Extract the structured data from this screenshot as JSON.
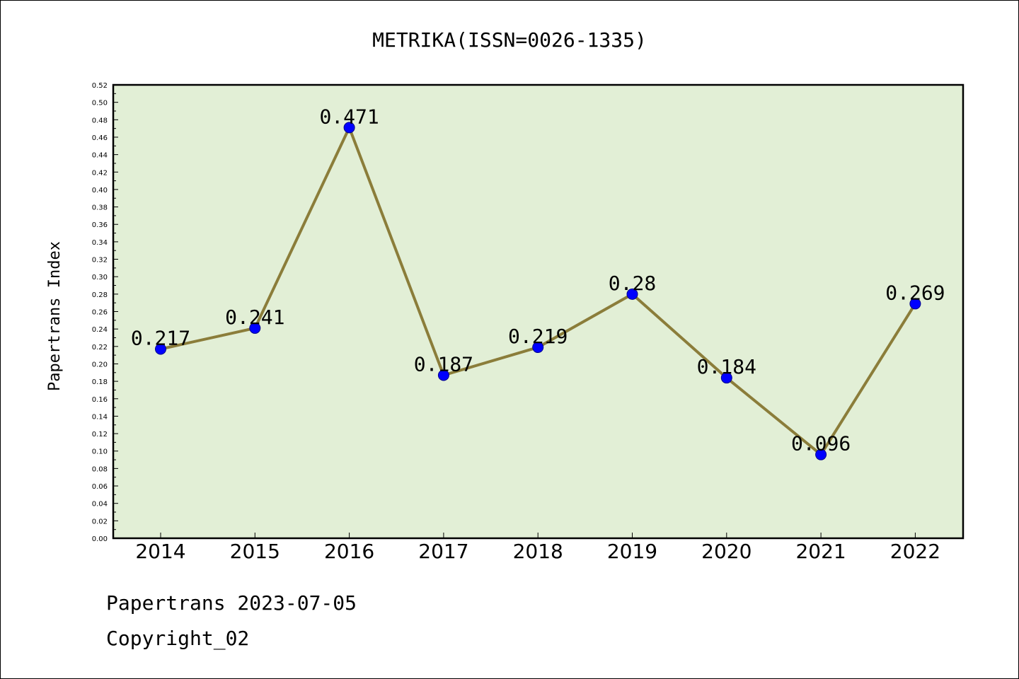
{
  "chart_data": {
    "type": "line",
    "title": "METRIKA(ISSN=0026-1335)",
    "ylabel": "Papertrans Index",
    "xlabel": "",
    "categories": [
      "2014",
      "2015",
      "2016",
      "2017",
      "2018",
      "2019",
      "2020",
      "2021",
      "2022"
    ],
    "values": [
      0.217,
      0.241,
      0.471,
      0.187,
      0.219,
      0.28,
      0.184,
      0.096,
      0.269
    ],
    "data_labels": [
      "0.217",
      "0.241",
      "0.471",
      "0.187",
      "0.219",
      "0.28",
      "0.184",
      "0.096",
      "0.269"
    ],
    "ylim": [
      0,
      0.52
    ],
    "yticks": [
      "0.00",
      "0.02",
      "0.04",
      "0.06",
      "0.08",
      "0.10",
      "0.12",
      "0.14",
      "0.16",
      "0.18",
      "0.20",
      "0.22",
      "0.24",
      "0.26",
      "0.28",
      "0.30",
      "0.32",
      "0.34",
      "0.36",
      "0.38",
      "0.40",
      "0.42",
      "0.44",
      "0.46",
      "0.48",
      "0.50",
      "0.52"
    ],
    "grid": false,
    "colors": {
      "plot_background": "#e2efd6",
      "line": "#8b7d3a",
      "marker": "#0000ff"
    }
  },
  "footer": {
    "line1": "Papertrans 2023-07-05",
    "line2": "Copyright_02"
  }
}
